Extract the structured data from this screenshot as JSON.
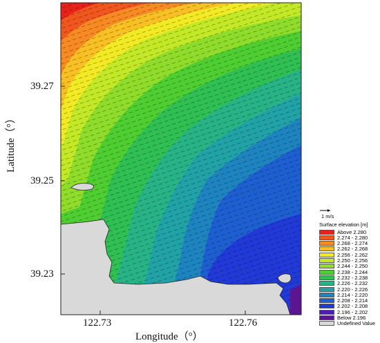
{
  "axes": {
    "xlabel": "Longitude（°）",
    "ylabel": "Latitude（°）",
    "x_ticks": [
      "122.73",
      "122.76"
    ],
    "y_ticks": [
      "39.27",
      "39.25",
      "39.23"
    ]
  },
  "scale_bar": {
    "label": "1 m/s"
  },
  "legend": {
    "title": "Surface elevation [m]",
    "entries": [
      {
        "label": "Above  2.280",
        "color": "#e8221b"
      },
      {
        "label": "2.274 - 2.280",
        "color": "#f0561e"
      },
      {
        "label": "2.268 - 2.274",
        "color": "#f78a22"
      },
      {
        "label": "2.262 - 2.268",
        "color": "#f9c023"
      },
      {
        "label": "2.256 - 2.262",
        "color": "#f2ea22"
      },
      {
        "label": "2.250 - 2.256",
        "color": "#c3e825"
      },
      {
        "label": "2.244 - 2.250",
        "color": "#8fdd2a"
      },
      {
        "label": "2.238 - 2.244",
        "color": "#4fce31"
      },
      {
        "label": "2.232 - 2.238",
        "color": "#2fbf52"
      },
      {
        "label": "2.226 - 2.232",
        "color": "#28b386"
      },
      {
        "label": "2.220 - 2.226",
        "color": "#21a2a6"
      },
      {
        "label": "2.214 - 2.220",
        "color": "#1e84bf"
      },
      {
        "label": "2.208 - 2.214",
        "color": "#1d5fd0"
      },
      {
        "label": "2.202 - 2.208",
        "color": "#2139d6"
      },
      {
        "label": "2.196 - 2.202",
        "color": "#4a1fb2"
      },
      {
        "label": "Below  2.196",
        "color": "#5a1590"
      },
      {
        "label": "Undefined Value",
        "color": "#d9d9d9"
      }
    ]
  }
}
